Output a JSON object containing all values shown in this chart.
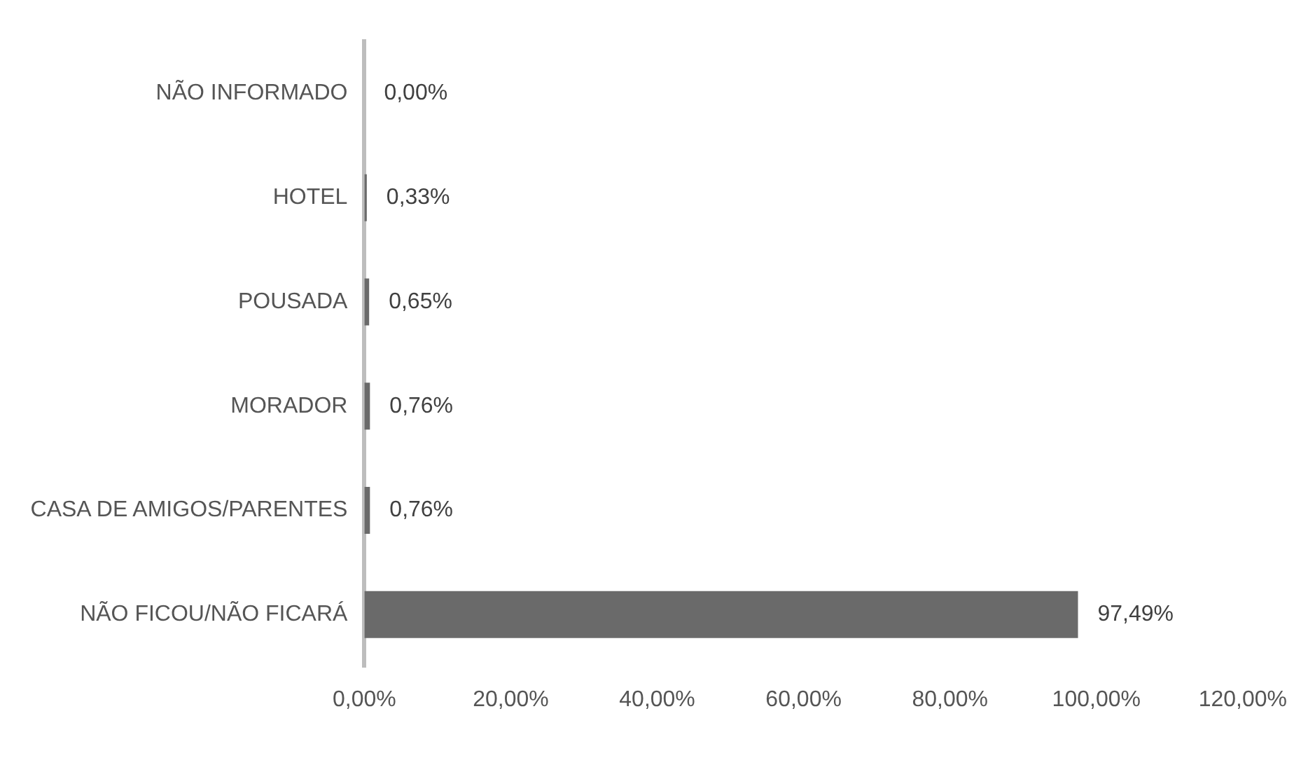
{
  "chart_data": {
    "type": "bar",
    "orientation": "horizontal",
    "categories": [
      "NÃO INFORMADO",
      "HOTEL",
      "POUSADA",
      "MORADOR",
      "CASA DE AMIGOS/PARENTES",
      "NÃO FICOU/NÃO FICARÁ"
    ],
    "values": [
      0,
      0.33,
      0.65,
      0.76,
      0.76,
      97.49
    ],
    "color": "#6a6a6a",
    "value_labels": [
      "0,00%",
      "0,33%",
      "0,65%",
      "0,76%",
      "0,76%",
      "97,49%"
    ],
    "xlim": [
      0,
      120
    ],
    "xticks": [
      {
        "value": 0,
        "label": "0,00%"
      },
      {
        "value": 20,
        "label": "20,00%"
      },
      {
        "value": 40,
        "label": "40,00%"
      },
      {
        "value": 60,
        "label": "60,00%"
      },
      {
        "value": 80,
        "label": "80,00%"
      },
      {
        "value": 100,
        "label": "100,00%"
      },
      {
        "value": 120,
        "label": "120,00%"
      }
    ],
    "grid": false,
    "legend": false
  }
}
